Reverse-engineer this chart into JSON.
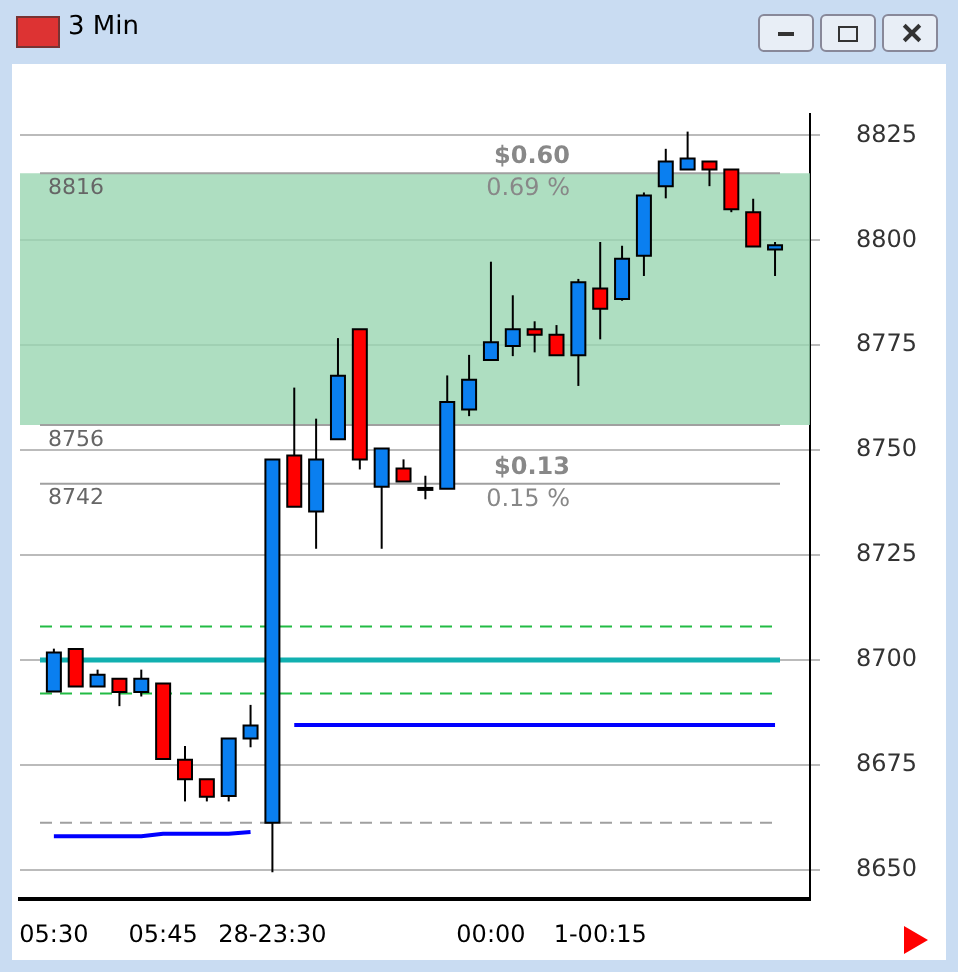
{
  "chart_data": {
    "type": "candlestick",
    "title": "3 Min",
    "categories": [
      "05:30",
      null,
      null,
      null,
      null,
      "05:45",
      null,
      null,
      null,
      null,
      "28-23:30",
      null,
      null,
      null,
      null,
      null,
      null,
      null,
      null,
      null,
      "00:00",
      null,
      null,
      null,
      null,
      "1-00:15",
      null,
      null,
      null,
      null,
      null,
      null,
      null,
      null
    ],
    "ohlc": [
      [
        8692.5,
        8702.7,
        8692.5,
        8701.8
      ],
      [
        8702.6,
        8702.6,
        8693.7,
        8693.7
      ],
      [
        8693.7,
        8697.7,
        8693.7,
        8696.5
      ],
      [
        8695.5,
        8695.5,
        8689,
        8692.4
      ],
      [
        8692.4,
        8697.7,
        8691.3,
        8695.5
      ],
      [
        8694.4,
        8694.4,
        8676.4,
        8676.4
      ],
      [
        8676.2,
        8679.5,
        8666.3,
        8671.6
      ],
      [
        8671.6,
        8671.6,
        8666.3,
        8667.4
      ],
      [
        8667.6,
        8681.3,
        8666.3,
        8681.3
      ],
      [
        8681.3,
        8689.3,
        8679.2,
        8684.4
      ],
      [
        8661.2,
        8747.8,
        8649.4,
        8747.8
      ],
      [
        8748.7,
        8764.9,
        8736.5,
        8736.5
      ],
      [
        8735.4,
        8757.5,
        8726.5,
        8747.8
      ],
      [
        8752.6,
        8776.7,
        8752.6,
        8767.7
      ],
      [
        8778.8,
        8778.8,
        8745.4,
        8747.8
      ],
      [
        8741.3,
        8750.4,
        8726.5,
        8750.4
      ],
      [
        8745.6,
        8747.8,
        8742.5,
        8742.5
      ],
      [
        8741,
        8743.9,
        8738.3,
        8741
      ],
      [
        8740.8,
        8767.8,
        8740.8,
        8761.5
      ],
      [
        8759.7,
        8772.7,
        8758.1,
        8766.8
      ],
      [
        8771.5,
        8794.9,
        8771.5,
        8775.7
      ],
      [
        8774.8,
        8786.9,
        8772.4,
        8778.8
      ],
      [
        8778.8,
        8780.7,
        8773.3,
        8777.5
      ],
      [
        8777.5,
        8779.8,
        8772.6,
        8772.6
      ],
      [
        8772.6,
        8790.8,
        8765.3,
        8790
      ],
      [
        8788.5,
        8799.6,
        8776.4,
        8783.7
      ],
      [
        8786,
        8798.7,
        8785.6,
        8795.6
      ],
      [
        8796.3,
        8811.4,
        8791.5,
        8810.7
      ],
      [
        8812.9,
        8821.8,
        8810,
        8818.8
      ],
      [
        8816.9,
        8825.9,
        8816.9,
        8819.5
      ],
      [
        8818.8,
        8818.8,
        8812.9,
        8816.9
      ],
      [
        8816.9,
        8816.9,
        8806.7,
        8807.4
      ],
      [
        8806.7,
        8809.9,
        8798.5,
        8798.5
      ],
      [
        8797.8,
        8799.6,
        8791.5,
        8798.8
      ]
    ],
    "colors": [
      "#0a7ff0",
      "#ff0000",
      "#0a7ff0",
      "#ff0000",
      "#0a7ff0",
      "#ff0000",
      "#ff0000",
      "#ff0000",
      "#0a7ff0",
      "#0a7ff0",
      "#0a7ff0",
      "#ff0000",
      "#0a7ff0",
      "#0a7ff0",
      "#ff0000",
      "#0a7ff0",
      "#ff0000",
      "#0a7ff0",
      "#0a7ff0",
      "#0a7ff0",
      "#0a7ff0",
      "#0a7ff0",
      "#ff0000",
      "#ff0000",
      "#0a7ff0",
      "#ff0000",
      "#0a7ff0",
      "#0a7ff0",
      "#0a7ff0",
      "#0a7ff0",
      "#ff0000",
      "#ff0000",
      "#ff0000",
      "#0a7ff0"
    ],
    "series": [
      {
        "type": "line",
        "color": "#0000ff",
        "values": [
          8658,
          8658,
          8658,
          8658,
          8658,
          8658.6,
          8658.6,
          8658.6,
          8658.6,
          8659,
          null,
          8684.5,
          8684.5,
          8684.5,
          8684.5,
          8684.5,
          8684.5,
          8684.5,
          8684.5,
          8684.5,
          8684.5,
          8684.5,
          8684.5,
          8684.5,
          8684.5,
          8684.5,
          8684.5,
          8684.5,
          8684.5,
          8684.5,
          8684.5,
          8684.5,
          8684.5,
          8684.5
        ]
      }
    ],
    "ylim": [
      8643,
      8830
    ],
    "yticks": [
      8650,
      8675,
      8700,
      8725,
      8750,
      8775,
      8800,
      8825
    ],
    "grid": "y",
    "legend": false,
    "bands": [
      {
        "axis": "y",
        "from": 8756,
        "to": 8816,
        "color": "#9ad6b2"
      }
    ],
    "ref_lines": [
      {
        "axis": "y",
        "value": 8708,
        "color": "#22bb44",
        "line_style": "dashed"
      },
      {
        "axis": "y",
        "value": 8700,
        "color": "#11b0b0",
        "line_style": "solid"
      },
      {
        "axis": "y",
        "value": 8692,
        "color": "#22bb44",
        "line_style": "dashed"
      },
      {
        "axis": "y",
        "value": 8661.2,
        "color": "#a0a0a0",
        "line_style": "dashed"
      },
      {
        "axis": "y",
        "value": 8816,
        "label": "8816",
        "color": "#a0a0a0",
        "line_style": "solid"
      },
      {
        "axis": "y",
        "value": 8756,
        "label": "8756",
        "color": "#a0a0a0",
        "line_style": "solid"
      },
      {
        "axis": "y",
        "value": 8742,
        "label": "8742",
        "color": "#a0a0a0",
        "line_style": "solid"
      }
    ],
    "annotations": [
      {
        "text": "$0.60",
        "y": 8816
      },
      {
        "text": "0.69 %",
        "y": 8816
      },
      {
        "text": "$0.13",
        "y": 8742
      },
      {
        "text": "0.15 %",
        "y": 8742
      }
    ]
  }
}
